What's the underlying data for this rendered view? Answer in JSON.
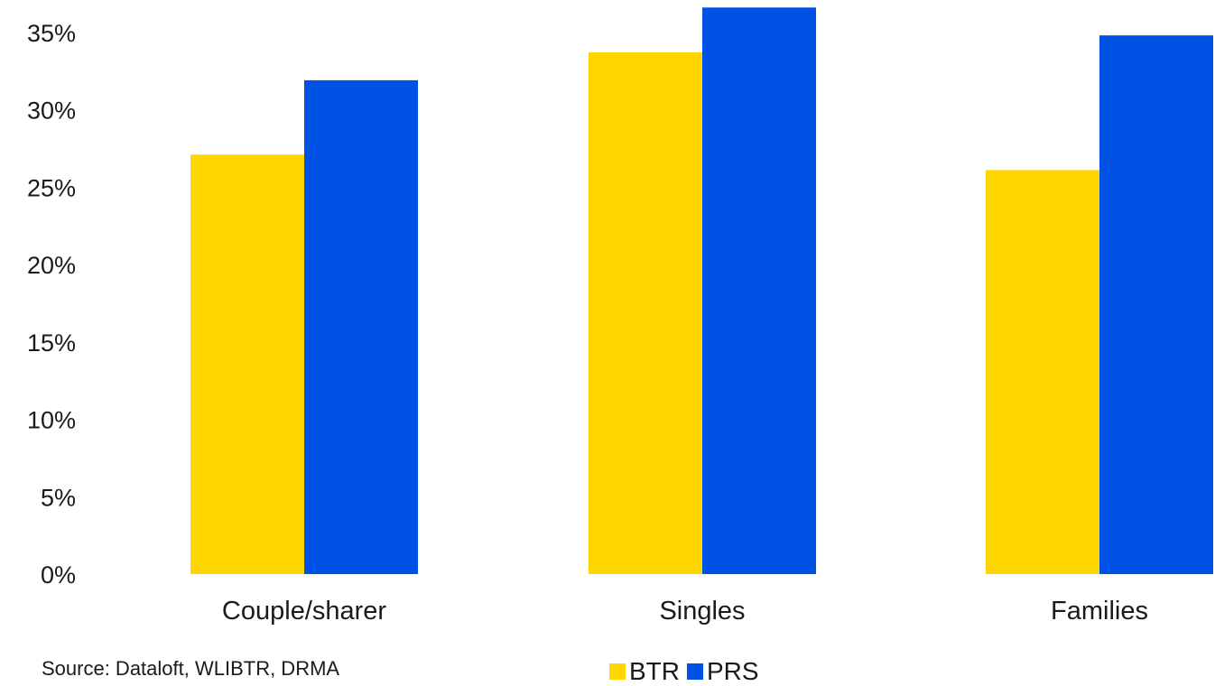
{
  "colors": {
    "btr": "#FFD600",
    "prs": "#0052E5"
  },
  "footer": {
    "source": "Source: Dataloft, WLIBTR, DRMA"
  },
  "chart_data": {
    "type": "bar",
    "title": "",
    "xlabel": "",
    "ylabel": "",
    "ylim": [
      0,
      37
    ],
    "yticks": [
      "0%",
      "5%",
      "10%",
      "15%",
      "20%",
      "25%",
      "30%",
      "35%"
    ],
    "ytick_values": [
      0,
      5,
      10,
      15,
      20,
      25,
      30,
      35
    ],
    "categories": [
      "Couple/sharer",
      "Singles",
      "Families"
    ],
    "series": [
      {
        "name": "BTR",
        "color": "#FFD600",
        "values": [
          27.1,
          33.7,
          26.1
        ]
      },
      {
        "name": "PRS",
        "color": "#0052E5",
        "values": [
          31.9,
          36.6,
          34.8
        ]
      }
    ],
    "legend": "bottom-center",
    "grid": false
  }
}
